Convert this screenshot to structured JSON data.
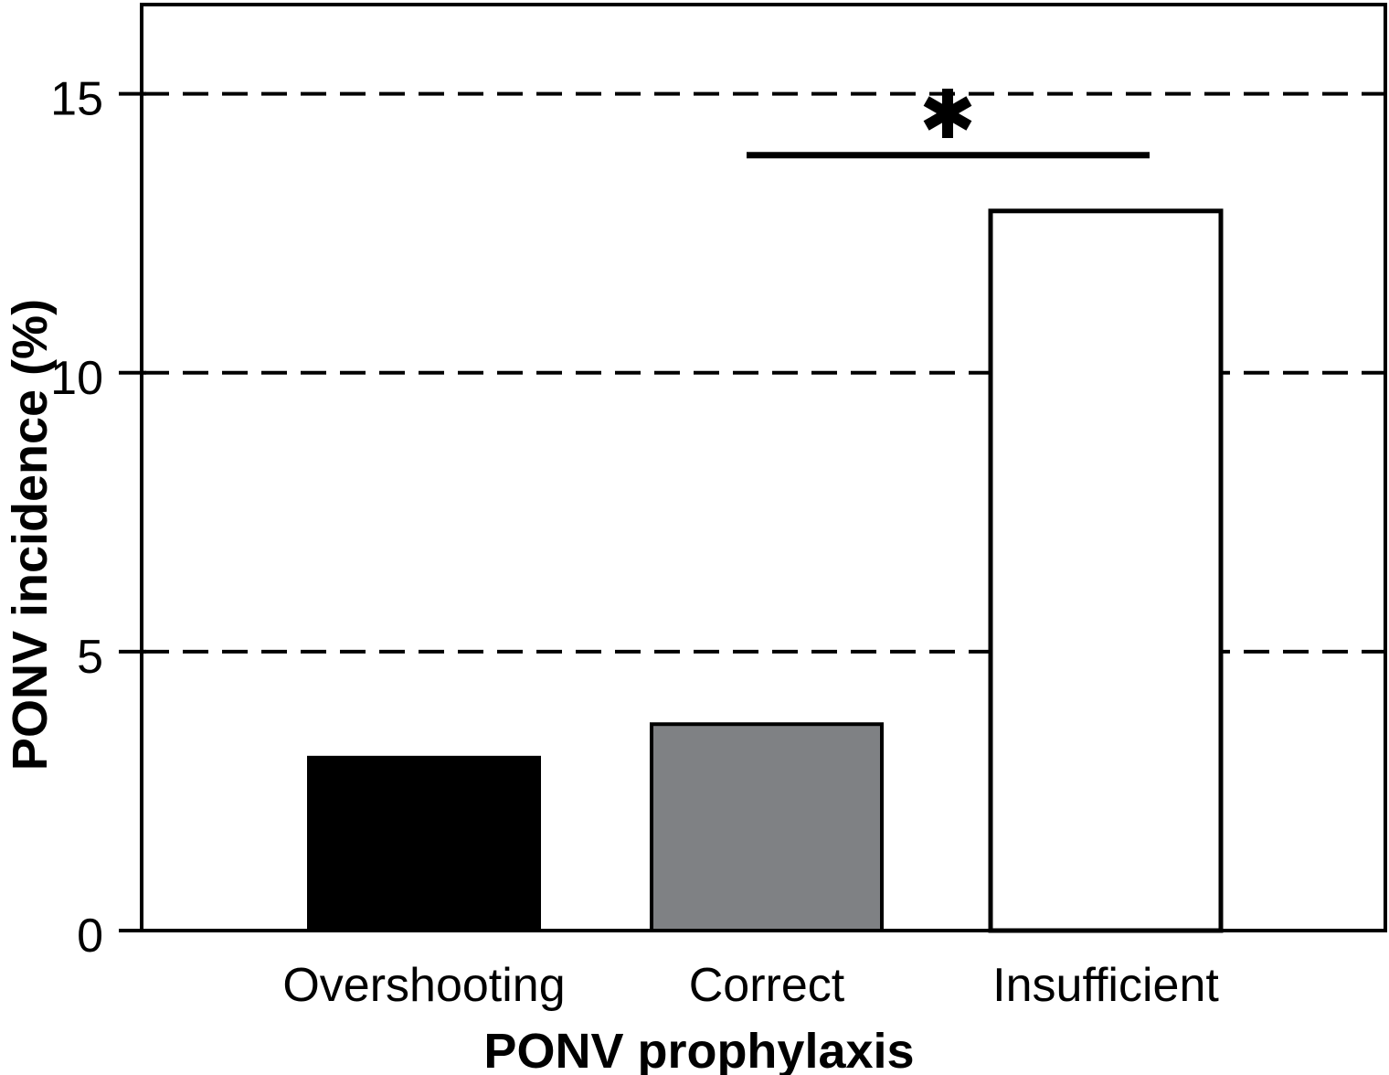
{
  "figure": {
    "background": "#ffffff"
  },
  "chart_data": {
    "type": "bar",
    "categories": [
      "Overshooting",
      "Correct",
      "Insufficient"
    ],
    "values": [
      3.1,
      3.7,
      12.9
    ],
    "bar_fill_colors": [
      "#000000",
      "#7f8184",
      "#ffffff"
    ],
    "bar_edge_color": "#000000",
    "xlabel": "PONV prophylaxis",
    "ylabel": "PONV incidence (%)",
    "ylim": [
      0,
      16.6
    ],
    "yticks": [
      0,
      5,
      10,
      15
    ],
    "ytick_labels": [
      "0",
      "5",
      "10",
      "15"
    ],
    "gridline_values": [
      5,
      10,
      15
    ],
    "gridline_style": "dashed",
    "axis_color": "#000000",
    "legend": "none",
    "significance": {
      "label": "*",
      "between": [
        "Correct",
        "Insufficient"
      ],
      "line_y_value": 13.9
    }
  }
}
